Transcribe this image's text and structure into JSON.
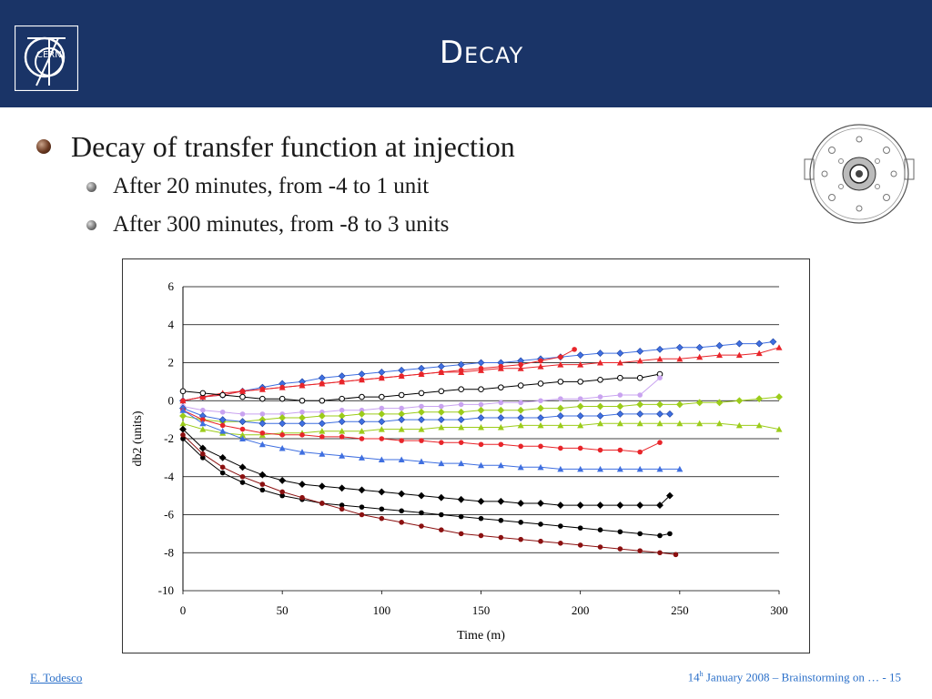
{
  "slide": {
    "title": "Decay",
    "bullets": [
      {
        "text": "Decay of transfer function at injection",
        "level": 1
      },
      {
        "text": "After 20 minutes, from -4 to 1 unit",
        "level": 2
      },
      {
        "text": "After 300 minutes, from -8 to 3 units",
        "level": 2
      }
    ],
    "logo_text": "CERN",
    "footer": {
      "author": "E. Todesco",
      "day": "14",
      "day_suffix": "h",
      "rest": " January 2008 – Brainstorming on  …  - 15"
    }
  },
  "colors": {
    "header_bg": "#1a3467",
    "blue": "#3f6fe0",
    "red": "#e8252a",
    "violet": "#c9a3f0",
    "green": "#9ccc1a",
    "black": "#000000",
    "darkred": "#8b1010"
  },
  "chart_data": {
    "type": "line",
    "title": "",
    "xlabel": "Time (m)",
    "ylabel": "db2 (units)",
    "xlim": [
      0,
      300
    ],
    "ylim": [
      -10,
      6
    ],
    "xticks": [
      "0",
      "50",
      "100",
      "150",
      "200",
      "250",
      "300"
    ],
    "yticks": [
      "6",
      "4",
      "2",
      "0",
      "-2",
      "-4",
      "-6",
      "-8",
      "-10"
    ],
    "grid": "horizontal",
    "legend": "none",
    "series": [
      {
        "color": "#3f6fe0",
        "marker": "diamond",
        "x": [
          0,
          10,
          20,
          30,
          40,
          50,
          60,
          70,
          80,
          90,
          100,
          110,
          120,
          130,
          140,
          150,
          160,
          170,
          180,
          190,
          200,
          210,
          220,
          230,
          240,
          250,
          260,
          270,
          280,
          290,
          297
        ],
        "y": [
          0,
          0.2,
          0.3,
          0.5,
          0.7,
          0.9,
          1.0,
          1.2,
          1.3,
          1.4,
          1.5,
          1.6,
          1.7,
          1.8,
          1.9,
          2.0,
          2.0,
          2.1,
          2.2,
          2.3,
          2.4,
          2.5,
          2.5,
          2.6,
          2.7,
          2.8,
          2.8,
          2.9,
          3.0,
          3.0,
          3.1
        ]
      },
      {
        "color": "#e8252a",
        "marker": "triangle",
        "x": [
          0,
          10,
          20,
          30,
          40,
          50,
          60,
          70,
          80,
          90,
          100,
          110,
          120,
          130,
          140,
          150,
          160,
          170,
          180,
          190,
          200,
          210,
          220,
          230,
          240,
          250,
          260,
          270,
          280,
          290,
          300
        ],
        "y": [
          0,
          0.2,
          0.4,
          0.5,
          0.6,
          0.7,
          0.8,
          0.9,
          1.0,
          1.1,
          1.2,
          1.3,
          1.4,
          1.5,
          1.5,
          1.6,
          1.7,
          1.7,
          1.8,
          1.9,
          1.9,
          2.0,
          2.0,
          2.1,
          2.2,
          2.2,
          2.3,
          2.4,
          2.4,
          2.5,
          2.8
        ]
      },
      {
        "color": "#e8252a",
        "marker": "circle",
        "x": [
          0,
          10,
          20,
          30,
          40,
          50,
          60,
          70,
          80,
          90,
          100,
          110,
          120,
          130,
          140,
          150,
          160,
          170,
          180,
          190,
          197
        ],
        "y": [
          0,
          0.2,
          0.3,
          0.5,
          0.6,
          0.7,
          0.8,
          0.9,
          1.0,
          1.1,
          1.2,
          1.3,
          1.4,
          1.5,
          1.6,
          1.7,
          1.8,
          1.9,
          2.1,
          2.3,
          2.7
        ]
      },
      {
        "color": "#000000",
        "marker": "circle-open",
        "x": [
          0,
          10,
          20,
          30,
          40,
          50,
          60,
          70,
          80,
          90,
          100,
          110,
          120,
          130,
          140,
          150,
          160,
          170,
          180,
          190,
          200,
          210,
          220,
          230,
          240
        ],
        "y": [
          0.5,
          0.4,
          0.3,
          0.2,
          0.1,
          0.1,
          0.0,
          0.0,
          0.1,
          0.2,
          0.2,
          0.3,
          0.4,
          0.5,
          0.6,
          0.6,
          0.7,
          0.8,
          0.9,
          1.0,
          1.0,
          1.1,
          1.2,
          1.2,
          1.4
        ]
      },
      {
        "color": "#c9a3f0",
        "marker": "circle",
        "x": [
          0,
          10,
          20,
          30,
          40,
          50,
          60,
          70,
          80,
          90,
          100,
          110,
          120,
          130,
          140,
          150,
          160,
          170,
          180,
          190,
          200,
          210,
          220,
          230,
          240
        ],
        "y": [
          -0.3,
          -0.5,
          -0.6,
          -0.7,
          -0.7,
          -0.7,
          -0.6,
          -0.6,
          -0.5,
          -0.5,
          -0.4,
          -0.4,
          -0.3,
          -0.3,
          -0.2,
          -0.2,
          -0.1,
          -0.1,
          0.0,
          0.1,
          0.1,
          0.2,
          0.3,
          0.3,
          1.2
        ]
      },
      {
        "color": "#9ccc1a",
        "marker": "diamond",
        "x": [
          0,
          10,
          20,
          30,
          40,
          50,
          60,
          70,
          80,
          90,
          100,
          110,
          120,
          130,
          140,
          150,
          160,
          170,
          180,
          190,
          200,
          210,
          220,
          230,
          240,
          250,
          260,
          270,
          280,
          290,
          300
        ],
        "y": [
          -0.8,
          -1.0,
          -1.1,
          -1.1,
          -1.0,
          -0.9,
          -0.9,
          -0.8,
          -0.8,
          -0.7,
          -0.7,
          -0.7,
          -0.6,
          -0.6,
          -0.6,
          -0.5,
          -0.5,
          -0.5,
          -0.4,
          -0.4,
          -0.3,
          -0.3,
          -0.3,
          -0.2,
          -0.2,
          -0.2,
          -0.1,
          -0.1,
          0.0,
          0.1,
          0.2
        ]
      },
      {
        "color": "#9ccc1a",
        "marker": "triangle",
        "x": [
          0,
          10,
          20,
          30,
          40,
          50,
          60,
          70,
          80,
          90,
          100,
          110,
          120,
          130,
          140,
          150,
          160,
          170,
          180,
          190,
          200,
          210,
          220,
          230,
          240,
          250,
          260,
          270,
          280,
          290,
          300
        ],
        "y": [
          -1.2,
          -1.5,
          -1.7,
          -1.8,
          -1.8,
          -1.7,
          -1.7,
          -1.6,
          -1.6,
          -1.6,
          -1.5,
          -1.5,
          -1.5,
          -1.4,
          -1.4,
          -1.4,
          -1.4,
          -1.3,
          -1.3,
          -1.3,
          -1.3,
          -1.2,
          -1.2,
          -1.2,
          -1.2,
          -1.2,
          -1.2,
          -1.2,
          -1.3,
          -1.3,
          -1.5
        ]
      },
      {
        "color": "#3f6fe0",
        "marker": "diamond",
        "x": [
          0,
          10,
          20,
          30,
          40,
          50,
          60,
          70,
          80,
          90,
          100,
          110,
          120,
          130,
          140,
          150,
          160,
          170,
          180,
          190,
          200,
          210,
          220,
          230,
          240,
          245
        ],
        "y": [
          -0.4,
          -0.8,
          -1.0,
          -1.1,
          -1.2,
          -1.2,
          -1.2,
          -1.2,
          -1.1,
          -1.1,
          -1.1,
          -1.0,
          -1.0,
          -1.0,
          -1.0,
          -0.9,
          -0.9,
          -0.9,
          -0.9,
          -0.8,
          -0.8,
          -0.8,
          -0.7,
          -0.7,
          -0.7,
          -0.7
        ]
      },
      {
        "color": "#e8252a",
        "marker": "circle",
        "x": [
          0,
          10,
          20,
          30,
          40,
          50,
          60,
          70,
          80,
          90,
          100,
          110,
          120,
          130,
          140,
          150,
          160,
          170,
          180,
          190,
          200,
          210,
          220,
          230,
          240
        ],
        "y": [
          -0.5,
          -1.0,
          -1.3,
          -1.5,
          -1.7,
          -1.8,
          -1.8,
          -1.9,
          -1.9,
          -2.0,
          -2.0,
          -2.1,
          -2.1,
          -2.2,
          -2.2,
          -2.3,
          -2.3,
          -2.4,
          -2.4,
          -2.5,
          -2.5,
          -2.6,
          -2.6,
          -2.7,
          -2.2
        ]
      },
      {
        "color": "#3f6fe0",
        "marker": "triangle",
        "x": [
          0,
          10,
          20,
          30,
          40,
          50,
          60,
          70,
          80,
          90,
          100,
          110,
          120,
          130,
          140,
          150,
          160,
          170,
          180,
          190,
          200,
          210,
          220,
          230,
          240,
          250
        ],
        "y": [
          -0.5,
          -1.2,
          -1.6,
          -2.0,
          -2.3,
          -2.5,
          -2.7,
          -2.8,
          -2.9,
          -3.0,
          -3.1,
          -3.1,
          -3.2,
          -3.3,
          -3.3,
          -3.4,
          -3.4,
          -3.5,
          -3.5,
          -3.6,
          -3.6,
          -3.6,
          -3.6,
          -3.6,
          -3.6,
          -3.6
        ]
      },
      {
        "color": "#000000",
        "marker": "diamond",
        "x": [
          0,
          10,
          20,
          30,
          40,
          50,
          60,
          70,
          80,
          90,
          100,
          110,
          120,
          130,
          140,
          150,
          160,
          170,
          180,
          190,
          200,
          210,
          220,
          230,
          240,
          245
        ],
        "y": [
          -1.5,
          -2.5,
          -3.0,
          -3.5,
          -3.9,
          -4.2,
          -4.4,
          -4.5,
          -4.6,
          -4.7,
          -4.8,
          -4.9,
          -5.0,
          -5.1,
          -5.2,
          -5.3,
          -5.3,
          -5.4,
          -5.4,
          -5.5,
          -5.5,
          -5.5,
          -5.5,
          -5.5,
          -5.5,
          -5.0
        ]
      },
      {
        "color": "#000000",
        "marker": "circle",
        "x": [
          0,
          10,
          20,
          30,
          40,
          50,
          60,
          70,
          80,
          90,
          100,
          110,
          120,
          130,
          140,
          150,
          160,
          170,
          180,
          190,
          200,
          210,
          220,
          230,
          240,
          245
        ],
        "y": [
          -2.0,
          -3.0,
          -3.8,
          -4.3,
          -4.7,
          -5.0,
          -5.2,
          -5.4,
          -5.5,
          -5.6,
          -5.7,
          -5.8,
          -5.9,
          -6.0,
          -6.1,
          -6.2,
          -6.3,
          -6.4,
          -6.5,
          -6.6,
          -6.7,
          -6.8,
          -6.9,
          -7.0,
          -7.1,
          -7.0
        ]
      },
      {
        "color": "#8b1010",
        "marker": "circle",
        "x": [
          0,
          10,
          20,
          30,
          40,
          50,
          60,
          70,
          80,
          90,
          100,
          110,
          120,
          130,
          140,
          150,
          160,
          170,
          180,
          190,
          200,
          210,
          220,
          230,
          240,
          248
        ],
        "y": [
          -1.8,
          -2.8,
          -3.5,
          -4.0,
          -4.4,
          -4.8,
          -5.1,
          -5.4,
          -5.7,
          -6.0,
          -6.2,
          -6.4,
          -6.6,
          -6.8,
          -7.0,
          -7.1,
          -7.2,
          -7.3,
          -7.4,
          -7.5,
          -7.6,
          -7.7,
          -7.8,
          -7.9,
          -8.0,
          -8.1
        ]
      }
    ]
  }
}
